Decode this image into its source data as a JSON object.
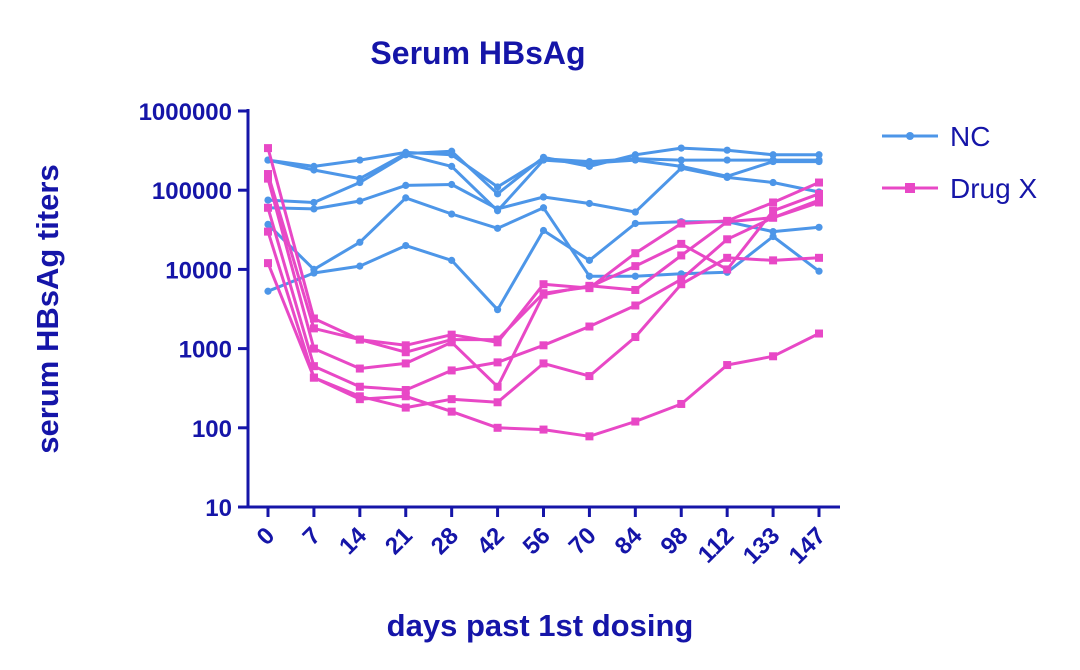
{
  "chart_data": {
    "type": "line",
    "title": "Serum HBsAg",
    "xlabel": "days past 1st dosing",
    "ylabel": "serum HBsAg titers",
    "yscale": "log",
    "ylim": [
      10,
      1000000
    ],
    "yticks": [
      10,
      100,
      1000,
      10000,
      100000,
      1000000
    ],
    "ytick_labels": [
      "10",
      "100",
      "1000",
      "10000",
      "100000",
      "1000000"
    ],
    "categories": [
      "0",
      "7",
      "14",
      "21",
      "28",
      "42",
      "56",
      "70",
      "84",
      "98",
      "112",
      "133",
      "147"
    ],
    "legend_position": "right",
    "groups": [
      {
        "name": "NC",
        "color": "#4d96e8",
        "marker": "circle",
        "series": [
          {
            "values": [
              240000,
              200000,
              240000,
              300000,
              280000,
              110000,
              250000,
              230000,
              250000,
              240000,
              240000,
              240000,
              240000
            ]
          },
          {
            "values": [
              240000,
              180000,
              140000,
              290000,
              310000,
              90000,
              260000,
              200000,
              280000,
              340000,
              320000,
              280000,
              280000
            ]
          },
          {
            "values": [
              75000,
              70000,
              125000,
              280000,
              200000,
              55000,
              240000,
              220000,
              240000,
              200000,
              150000,
              230000,
              230000
            ]
          },
          {
            "values": [
              60000,
              58000,
              73000,
              115000,
              118000,
              58000,
              82000,
              68000,
              53000,
              190000,
              145000,
              125000,
              95000
            ]
          },
          {
            "values": [
              37000,
              10000,
              22000,
              80000,
              50000,
              33000,
              60000,
              8200,
              8200,
              8800,
              9200,
              26000,
              9500
            ]
          },
          {
            "values": [
              5300,
              9000,
              11000,
              20000,
              13000,
              3100,
              31000,
              13000,
              38000,
              40000,
              40000,
              30000,
              34000
            ]
          }
        ]
      },
      {
        "name": "Drug X",
        "color": "#e848c6",
        "marker": "square",
        "series": [
          {
            "values": [
              340000,
              2400,
              1300,
              1100,
              1500,
              1200,
              6500,
              5800,
              16000,
              38000,
              41000,
              70000,
              125000
            ]
          },
          {
            "values": [
              160000,
              1800,
              1300,
              900,
              1300,
              1300,
              5000,
              6000,
              11000,
              21000,
              10000,
              55000,
              90000
            ]
          },
          {
            "values": [
              140000,
              1000,
              560,
              650,
              1200,
              330,
              4800,
              6200,
              5500,
              15000,
              40000,
              45000,
              75000
            ]
          },
          {
            "values": [
              60000,
              600,
              330,
              300,
              530,
              670,
              1100,
              1900,
              3500,
              7500,
              24000,
              45000,
              70000
            ]
          },
          {
            "values": [
              30000,
              430,
              250,
              180,
              230,
              210,
              650,
              450,
              1400,
              6500,
              14000,
              13000,
              14000
            ]
          },
          {
            "values": [
              12000,
              430,
              230,
              250,
              160,
              100,
              95,
              78,
              120,
              200,
              620,
              800,
              1550
            ]
          }
        ]
      }
    ]
  }
}
